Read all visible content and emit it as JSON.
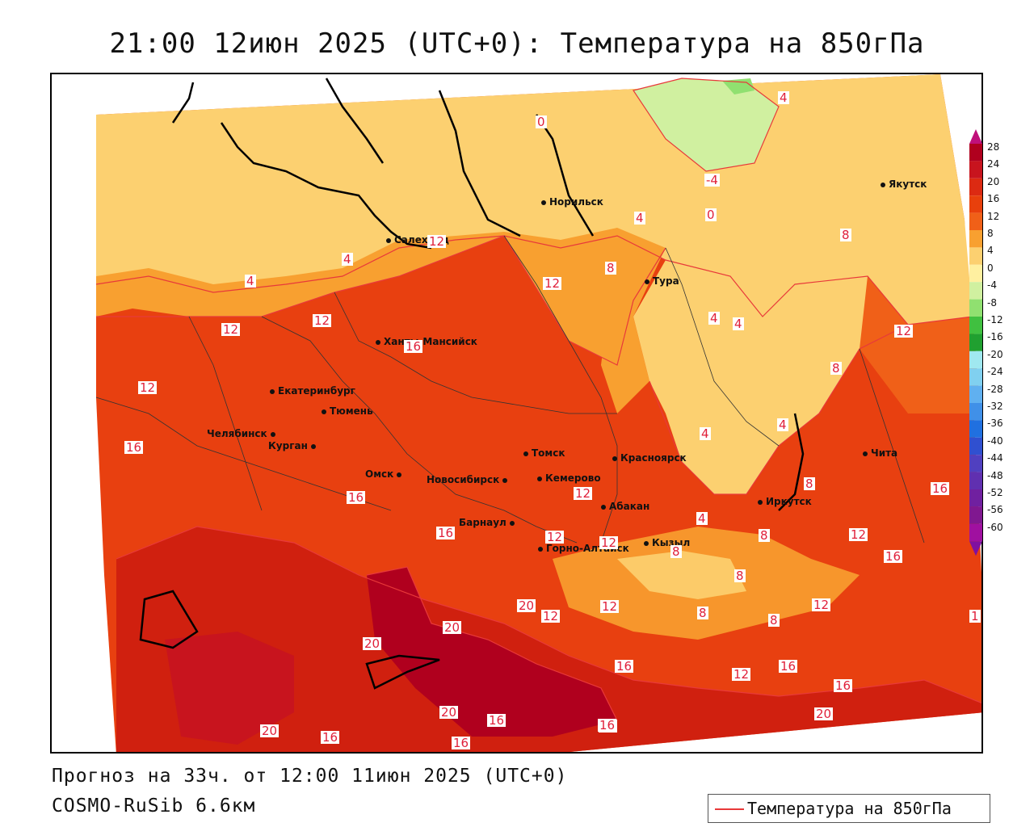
{
  "title": "21:00 12июн 2025 (UTC+0): Температура на 850гПа",
  "footer": {
    "forecast": "Прогноз на 33ч. от 12:00 11июн 2025 (UTC+0)",
    "model": "COSMO-RuSib 6.6км"
  },
  "legend": {
    "label": "Температура на 850гПа",
    "line_color": "#e8393a"
  },
  "colorbar": {
    "ticks": [
      "28",
      "24",
      "20",
      "16",
      "12",
      "8",
      "4",
      "0",
      "-4",
      "-8",
      "-12",
      "-16",
      "-20",
      "-24",
      "-28",
      "-32",
      "-36",
      "-40",
      "-44",
      "-48",
      "-52",
      "-56",
      "-60"
    ],
    "colors": [
      "#b0001e",
      "#c8141e",
      "#dc2a12",
      "#e8400c",
      "#f06018",
      "#f8a030",
      "#fcd070",
      "#fff0a0",
      "#d0f0a0",
      "#90e070",
      "#40c040",
      "#20a030",
      "#a0e8f0",
      "#80d0f0",
      "#60b0f0",
      "#4090e8",
      "#2070e0",
      "#3050d0",
      "#5040c0",
      "#6030b0",
      "#7020a0",
      "#801890",
      "#a010a0"
    ]
  },
  "cities": [
    {
      "name": "Якутск"
    },
    {
      "name": "Норильск"
    },
    {
      "name": "Салехард"
    },
    {
      "name": "Тура"
    },
    {
      "name": "Ханты-Мансийск"
    },
    {
      "name": "Екатеринбург"
    },
    {
      "name": "Тюмень"
    },
    {
      "name": "Челябинск"
    },
    {
      "name": "Курган"
    },
    {
      "name": "Омск"
    },
    {
      "name": "Новосибирск"
    },
    {
      "name": "Томск"
    },
    {
      "name": "Красноярск"
    },
    {
      "name": "Кемерово"
    },
    {
      "name": "Барнаул"
    },
    {
      "name": "Абакан"
    },
    {
      "name": "Горно-Алтайск"
    },
    {
      "name": "Кызыл"
    },
    {
      "name": "Иркутск"
    },
    {
      "name": "Чита"
    }
  ],
  "contour_labels": [
    "4",
    "0",
    "-4",
    "0",
    "4",
    "8",
    "12",
    "8",
    "4",
    "4",
    "12",
    "16",
    "8",
    "4",
    "8",
    "12",
    "16",
    "12",
    "16",
    "16",
    "16",
    "20",
    "20",
    "20",
    "12",
    "12",
    "16",
    "12",
    "12",
    "16",
    "20",
    "20",
    "16",
    "16",
    "16",
    "20",
    "16",
    "12",
    "8",
    "8",
    "4",
    "8",
    "8",
    "8",
    "4",
    "4",
    "4",
    "12",
    "12",
    "16",
    "12",
    "16",
    "16",
    "12",
    "12",
    "1"
  ]
}
